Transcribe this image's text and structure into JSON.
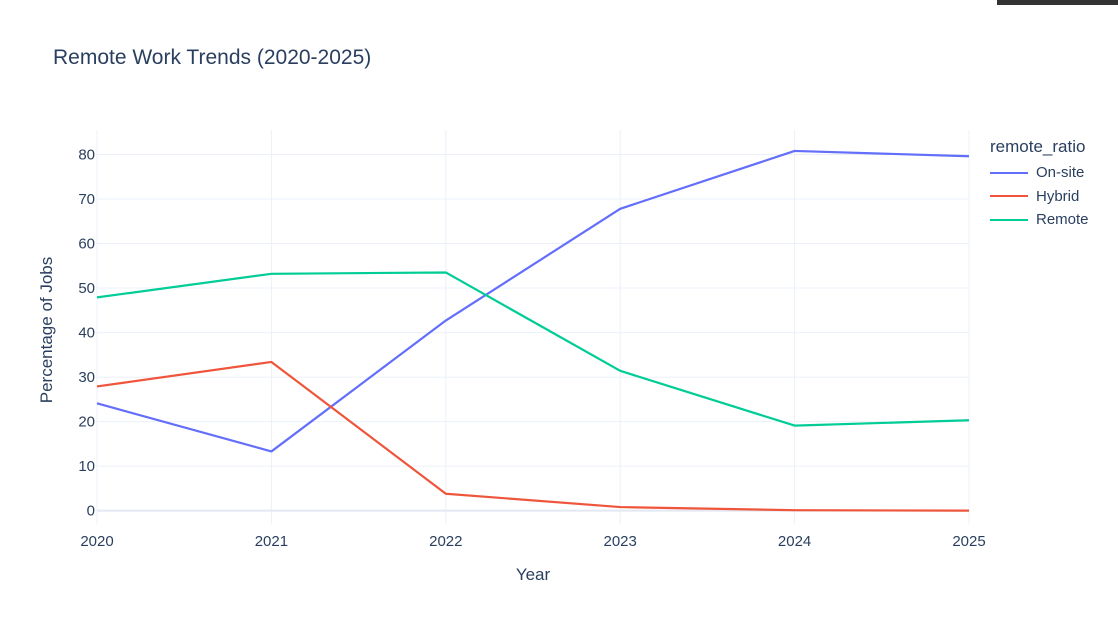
{
  "chart_data": {
    "type": "line",
    "title": "Remote Work Trends (2020-2025)",
    "xlabel": "Year",
    "ylabel": "Percentage of Jobs",
    "x": [
      2020,
      2021,
      2022,
      2023,
      2024,
      2025
    ],
    "x_ticks": [
      "2020",
      "2021",
      "2022",
      "2023",
      "2024",
      "2025"
    ],
    "y_ticks": [
      "0",
      "10",
      "20",
      "30",
      "40",
      "50",
      "60",
      "70",
      "80"
    ],
    "xlim": [
      2020,
      2025
    ],
    "ylim": [
      -3,
      85.5
    ],
    "grid": true,
    "legend_title": "remote_ratio",
    "legend_position": "top-right",
    "series": [
      {
        "name": "On-site",
        "color": "#636efa",
        "values": [
          24.1,
          13.3,
          42.7,
          67.8,
          80.8,
          79.6
        ]
      },
      {
        "name": "Hybrid",
        "color": "#ef553b",
        "values": [
          27.9,
          33.4,
          3.8,
          0.8,
          0.1,
          0.0
        ]
      },
      {
        "name": "Remote",
        "color": "#00cc96",
        "values": [
          47.9,
          53.2,
          53.5,
          31.4,
          19.1,
          20.3
        ]
      }
    ]
  }
}
